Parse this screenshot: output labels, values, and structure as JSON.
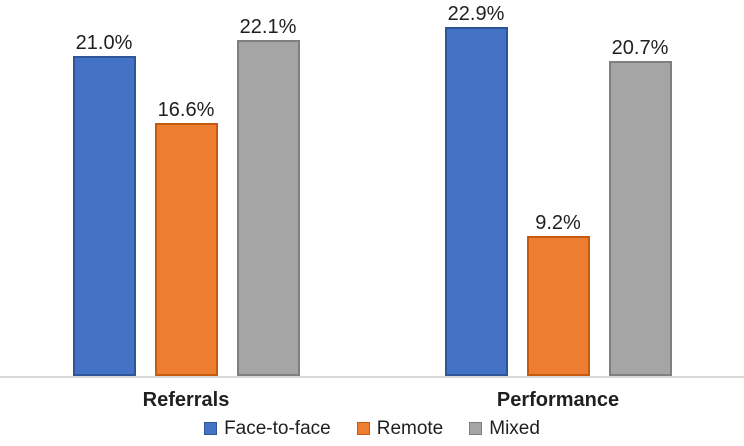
{
  "figure": {
    "background": "#ffffff",
    "axis_line_color": "#d9d9d9",
    "text_color": "#1f1f1f"
  },
  "chart_data": {
    "type": "bar",
    "title": "",
    "xlabel": "",
    "ylabel": "",
    "categories": [
      "Referrals",
      "Performance"
    ],
    "series": [
      {
        "name": "Face-to-face",
        "color": "#4472c4",
        "border_color": "#2f5597",
        "values": [
          21.0,
          22.9
        ],
        "labels": [
          "21.0%",
          "22.9%"
        ]
      },
      {
        "name": "Remote",
        "color": "#ed7d31",
        "border_color": "#c55a11",
        "values": [
          16.6,
          9.2
        ],
        "labels": [
          "16.6%",
          "9.2%"
        ]
      },
      {
        "name": "Mixed",
        "color": "#a5a5a5",
        "border_color": "#7f7f7f",
        "values": [
          22.1,
          20.7
        ],
        "labels": [
          "22.1%",
          "20.7%"
        ]
      }
    ],
    "ylim": [
      0,
      24.7
    ],
    "grid": false,
    "y_axis_visible": false,
    "legend_position": "bottom",
    "value_format": "percent_one_decimal"
  }
}
